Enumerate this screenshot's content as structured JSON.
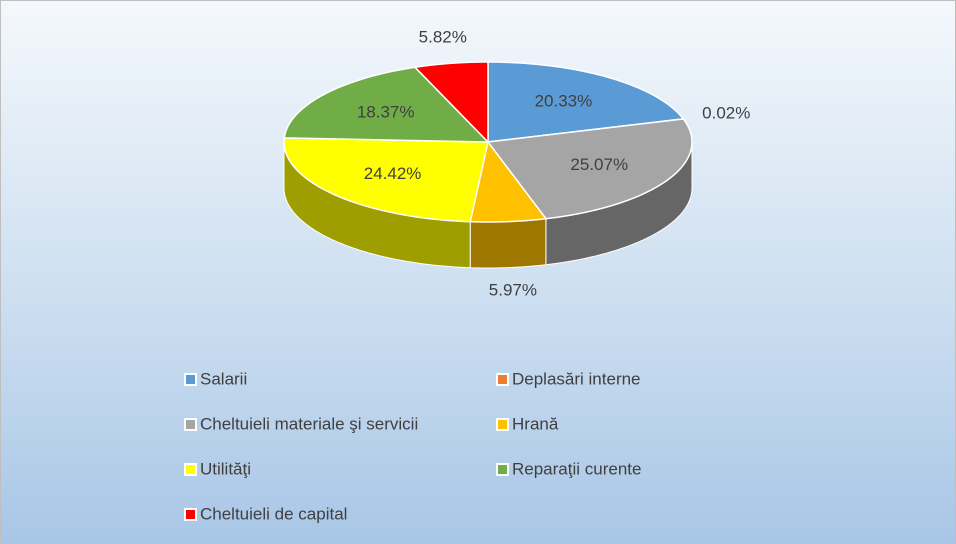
{
  "chart_data": {
    "type": "pie",
    "categories": [
      "Salarii",
      "Deplasări interne",
      "Cheltuieli materiale şi servicii",
      "Hrană",
      "Utilităţi",
      "Reparaţii curente",
      "Cheltuieli de capital"
    ],
    "values": [
      20.33,
      0.02,
      25.07,
      5.97,
      24.42,
      18.37,
      5.82
    ],
    "value_labels": [
      "20.33%",
      "0.02%",
      "25.07%",
      "5.97%",
      "24.42%",
      "18.37%",
      "5.82%"
    ],
    "colors": [
      "#5b9bd5",
      "#ed7d31",
      "#a5a5a5",
      "#ffc000",
      "#ffff00",
      "#70ad47",
      "#ff0000"
    ],
    "legend": "bottom"
  }
}
